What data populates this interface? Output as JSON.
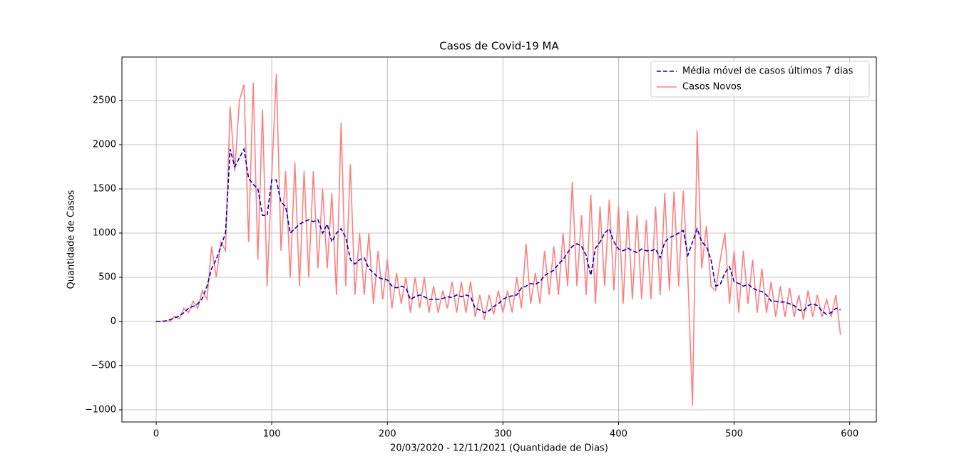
{
  "chart_data": {
    "type": "line",
    "title": "Casos de Covid-19 MA",
    "xlabel": "20/03/2020 - 12/11/2021 (Quantidade de Dias)",
    "ylabel": "Quantidade de Casos",
    "x": [
      0,
      4,
      8,
      12,
      16,
      20,
      24,
      28,
      32,
      36,
      40,
      44,
      48,
      52,
      56,
      60,
      64,
      68,
      72,
      76,
      80,
      84,
      88,
      92,
      96,
      100,
      104,
      108,
      112,
      116,
      120,
      124,
      128,
      132,
      136,
      140,
      144,
      148,
      152,
      156,
      160,
      164,
      168,
      172,
      176,
      180,
      184,
      188,
      192,
      196,
      200,
      204,
      208,
      212,
      216,
      220,
      224,
      228,
      232,
      236,
      240,
      244,
      248,
      252,
      256,
      260,
      264,
      268,
      272,
      276,
      280,
      284,
      288,
      292,
      296,
      300,
      304,
      308,
      312,
      316,
      320,
      324,
      328,
      332,
      336,
      340,
      344,
      348,
      352,
      356,
      360,
      364,
      368,
      372,
      376,
      380,
      384,
      388,
      392,
      396,
      400,
      404,
      408,
      412,
      416,
      420,
      424,
      428,
      432,
      436,
      440,
      444,
      448,
      452,
      456,
      460,
      464,
      468,
      472,
      476,
      480,
      484,
      488,
      492,
      496,
      500,
      504,
      508,
      512,
      516,
      520,
      524,
      528,
      532,
      536,
      540,
      544,
      548,
      552,
      556,
      560,
      564,
      568,
      572,
      576,
      580,
      584,
      588,
      592
    ],
    "series": [
      {
        "name": "Média móvel de casos últimos 7 dias",
        "color": "#0000cc",
        "dashed": true,
        "values": [
          0,
          0,
          5,
          20,
          40,
          60,
          100,
          150,
          170,
          200,
          260,
          400,
          600,
          700,
          850,
          1000,
          1950,
          1750,
          1850,
          1950,
          1620,
          1550,
          1500,
          1200,
          1200,
          1600,
          1600,
          1350,
          1300,
          1000,
          1050,
          1100,
          1130,
          1150,
          1130,
          1150,
          1000,
          1100,
          900,
          1000,
          1050,
          950,
          700,
          650,
          700,
          720,
          600,
          550,
          500,
          480,
          470,
          400,
          380,
          400,
          380,
          250,
          280,
          300,
          280,
          250,
          250,
          250,
          260,
          280,
          270,
          300,
          280,
          300,
          280,
          150,
          130,
          100,
          120,
          170,
          200,
          250,
          280,
          290,
          300,
          380,
          400,
          430,
          420,
          450,
          520,
          550,
          580,
          650,
          700,
          780,
          850,
          880,
          850,
          750,
          520,
          830,
          900,
          1000,
          1050,
          900,
          820,
          800,
          830,
          800,
          780,
          820,
          800,
          800,
          820,
          720,
          900,
          950,
          970,
          1000,
          1030,
          750,
          900,
          1050,
          900,
          850,
          700,
          400,
          420,
          550,
          620,
          450,
          430,
          400,
          420,
          380,
          350,
          340,
          300,
          230,
          230,
          220,
          220,
          200,
          180,
          130,
          120,
          180,
          200,
          180,
          120,
          80,
          100,
          150,
          130
        ]
      },
      {
        "name": "Casos Novos",
        "color": "#ff7f7f",
        "dashed": false,
        "values": [
          0,
          0,
          10,
          0,
          60,
          30,
          150,
          100,
          230,
          150,
          350,
          250,
          850,
          500,
          900,
          800,
          2430,
          1700,
          2500,
          2680,
          900,
          2700,
          700,
          2400,
          400,
          1650,
          2800,
          800,
          1700,
          500,
          1800,
          400,
          1700,
          500,
          1700,
          600,
          1500,
          600,
          1450,
          300,
          2250,
          400,
          1780,
          300,
          1000,
          300,
          1000,
          200,
          800,
          250,
          700,
          150,
          550,
          200,
          500,
          100,
          500,
          150,
          500,
          100,
          400,
          100,
          350,
          150,
          450,
          100,
          450,
          100,
          450,
          50,
          300,
          20,
          300,
          80,
          350,
          100,
          350,
          100,
          500,
          150,
          880,
          200,
          550,
          200,
          800,
          300,
          850,
          300,
          1000,
          400,
          1580,
          400,
          1200,
          300,
          1430,
          200,
          1300,
          400,
          1380,
          350,
          1300,
          200,
          1250,
          250,
          1200,
          250,
          1150,
          250,
          1300,
          300,
          1450,
          350,
          1470,
          400,
          1480,
          500,
          -950,
          2160,
          600,
          1080,
          400,
          350,
          700,
          1000,
          200,
          800,
          100,
          800,
          200,
          700,
          100,
          600,
          100,
          450,
          50,
          400,
          50,
          380,
          50,
          300,
          20,
          350,
          50,
          300,
          50,
          250,
          50,
          300,
          -150
        ]
      }
    ],
    "xlim": [
      -29.6,
      623
    ],
    "ylim": [
      -1137,
      2992
    ],
    "xticks": [
      0,
      100,
      200,
      300,
      400,
      500,
      600
    ],
    "yticks": [
      {
        "value": -1000,
        "label": "−1000"
      },
      {
        "value": -500,
        "label": "−500"
      },
      0,
      500,
      1000,
      1500,
      2000,
      2500
    ],
    "grid": true,
    "legend": "upper right"
  }
}
